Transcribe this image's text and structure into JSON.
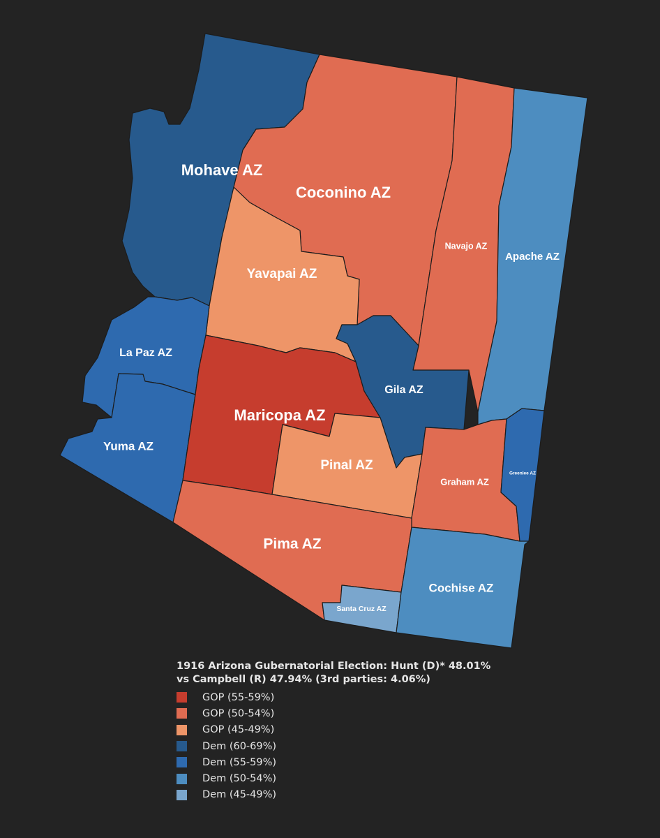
{
  "map": {
    "title": "1916 Arizona Gubernatorial Election: Hunt (D)* 48.01% vs Campbell (R) 47.94% (3rd parties: 4.06%)",
    "colors": {
      "background": "#232323",
      "gop_55_59": "#c63d2e",
      "gop_50_54": "#e06c52",
      "gop_45_49": "#ee9568",
      "dem_60_69": "#275a8d",
      "dem_55_59": "#2e6aaf",
      "dem_50_54": "#4d8dc0",
      "dem_45_49": "#7aa6cd"
    },
    "counties": [
      {
        "id": "mohave",
        "label": "Mohave  AZ",
        "category": "Dem (60-69%)"
      },
      {
        "id": "coconino",
        "label": "Coconino  AZ",
        "category": "GOP (50-54%)"
      },
      {
        "id": "navajo",
        "label": "Navajo  AZ",
        "category": "GOP (50-54%)"
      },
      {
        "id": "apache",
        "label": "Apache  AZ",
        "category": "Dem (50-54%)"
      },
      {
        "id": "yavapai",
        "label": "Yavapai  AZ",
        "category": "GOP (45-49%)"
      },
      {
        "id": "lapaz",
        "label": "La Paz  AZ",
        "category": "Dem (55-59%)"
      },
      {
        "id": "yuma",
        "label": "Yuma  AZ",
        "category": "Dem (55-59%)"
      },
      {
        "id": "maricopa",
        "label": "Maricopa  AZ",
        "category": "GOP (55-59%)"
      },
      {
        "id": "gila",
        "label": "Gila  AZ",
        "category": "Dem (60-69%)"
      },
      {
        "id": "pinal",
        "label": "Pinal  AZ",
        "category": "GOP (45-49%)"
      },
      {
        "id": "graham",
        "label": "Graham  AZ",
        "category": "GOP (50-54%)"
      },
      {
        "id": "greenlee",
        "label": "Greenlee  AZ",
        "category": "Dem (55-59%)"
      },
      {
        "id": "pima",
        "label": "Pima  AZ",
        "category": "GOP (50-54%)"
      },
      {
        "id": "santacruz",
        "label": "Santa Cruz  AZ",
        "category": "Dem (45-49%)"
      },
      {
        "id": "cochise",
        "label": "Cochise  AZ",
        "category": "Dem (50-54%)"
      }
    ]
  },
  "legend": {
    "items": [
      {
        "label": "GOP (55-59%)",
        "color": "#c63d2e"
      },
      {
        "label": "GOP (50-54%)",
        "color": "#e06c52"
      },
      {
        "label": "GOP (45-49%)",
        "color": "#ee9568"
      },
      {
        "label": "Dem (60-69%)",
        "color": "#275a8d"
      },
      {
        "label": "Dem (55-59%)",
        "color": "#2e6aaf"
      },
      {
        "label": "Dem (50-54%)",
        "color": "#4d8dc0"
      },
      {
        "label": "Dem (45-49%)",
        "color": "#7aa6cd"
      }
    ]
  }
}
